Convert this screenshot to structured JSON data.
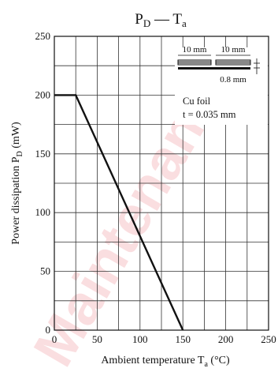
{
  "watermark": {
    "text": "Maintenance"
  },
  "chart_data": {
    "type": "line",
    "title": {
      "main": "P",
      "main_sub": "D",
      "dash": "—",
      "var": "T",
      "var_sub": "a"
    },
    "xlabel": {
      "text": "Ambient temperature  T",
      "sub": "a",
      "unit": "(°C)"
    },
    "ylabel": {
      "text": "Power dissipation  P",
      "sub": "D",
      "unit": "(mW)"
    },
    "xlim": [
      0,
      250
    ],
    "ylim": [
      0,
      250
    ],
    "x_ticks": [
      0,
      50,
      100,
      150,
      200,
      250
    ],
    "y_ticks": [
      0,
      50,
      100,
      150,
      200,
      250
    ],
    "grid": true,
    "series": [
      {
        "x": [
          0,
          25,
          150
        ],
        "y": [
          200,
          200,
          0
        ]
      }
    ],
    "inset": {
      "dim_1": "10 mm",
      "dim_2": "10 mm",
      "dim_thickness": "0.8 mm",
      "note_line1": "Cu foil",
      "note_line2": "t = 0.035 mm"
    }
  }
}
